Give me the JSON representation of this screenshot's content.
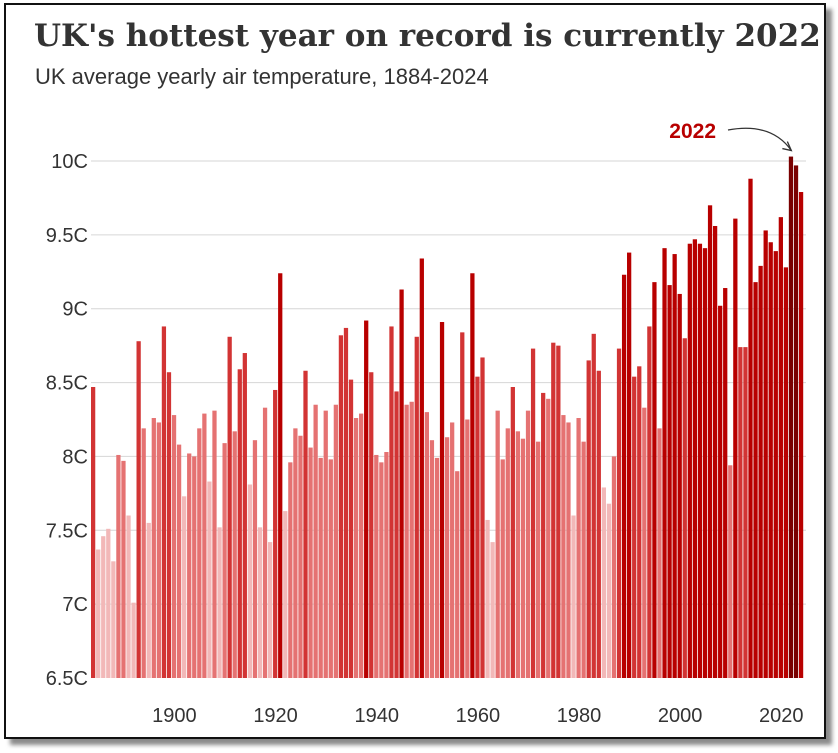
{
  "title": "UK's hottest year on record is currently 2022",
  "subtitle": "UK average yearly air temperature, 1884-2024",
  "chart_data": {
    "type": "bar",
    "title": "UK's hottest year on record is currently 2022",
    "subtitle": "UK average yearly air temperature, 1884-2024",
    "xlabel": "",
    "ylabel": "",
    "x_start": 1884,
    "ylim": [
      6.5,
      10.2
    ],
    "y_ticks": [
      6.5,
      7,
      7.5,
      8,
      8.5,
      9,
      9.5,
      10
    ],
    "y_tick_labels": [
      "6.5C",
      "7C",
      "7.5C",
      "8C",
      "8.5C",
      "9C",
      "9.5C",
      "10C"
    ],
    "x_ticks": [
      1900,
      1920,
      1940,
      1960,
      1980,
      2000,
      2020
    ],
    "x_tick_labels": [
      "1900",
      "1920",
      "1940",
      "1960",
      "1980",
      "2000",
      "2020"
    ],
    "grid": true,
    "values": [
      8.47,
      7.37,
      7.46,
      7.51,
      7.29,
      8.01,
      7.97,
      7.6,
      7.01,
      8.78,
      8.19,
      7.55,
      8.26,
      8.23,
      8.88,
      8.57,
      8.28,
      8.08,
      7.73,
      8.02,
      8.0,
      8.19,
      8.29,
      7.83,
      8.31,
      7.52,
      8.09,
      8.81,
      8.17,
      8.59,
      8.7,
      7.81,
      8.11,
      7.52,
      8.33,
      7.42,
      8.45,
      9.24,
      7.63,
      7.96,
      8.19,
      8.14,
      8.58,
      8.06,
      8.35,
      7.99,
      8.31,
      7.98,
      8.35,
      8.82,
      8.87,
      8.52,
      8.26,
      8.29,
      8.92,
      8.57,
      8.01,
      7.96,
      8.03,
      8.88,
      8.44,
      9.13,
      8.35,
      8.37,
      8.81,
      9.34,
      8.3,
      8.11,
      7.99,
      8.91,
      8.13,
      8.23,
      7.9,
      8.84,
      8.25,
      9.24,
      8.54,
      8.67,
      7.57,
      7.42,
      8.31,
      7.98,
      8.19,
      8.47,
      8.17,
      8.12,
      8.31,
      8.73,
      8.1,
      8.43,
      8.39,
      8.77,
      8.75,
      8.28,
      8.23,
      7.6,
      8.26,
      8.1,
      8.65,
      8.83,
      8.58,
      7.79,
      7.68,
      8.0,
      8.73,
      9.23,
      9.38,
      8.54,
      8.61,
      8.33,
      8.88,
      9.18,
      8.19,
      9.41,
      9.16,
      9.37,
      9.1,
      8.8,
      9.44,
      9.47,
      9.44,
      9.41,
      9.7,
      9.56,
      9.02,
      9.14,
      7.94,
      9.61,
      8.74,
      8.74,
      9.88,
      9.18,
      9.29,
      9.53,
      9.45,
      9.39,
      9.62,
      9.28,
      10.03,
      9.97,
      9.79
    ],
    "annotations": [
      {
        "text": "2022",
        "year": 2022,
        "color": "#b80000"
      }
    ],
    "colors": {
      "lightest": "#f2b8b8",
      "light": "#e57272",
      "mid": "#d23434",
      "strong": "#b80000",
      "darkest": "#7a0000"
    }
  }
}
